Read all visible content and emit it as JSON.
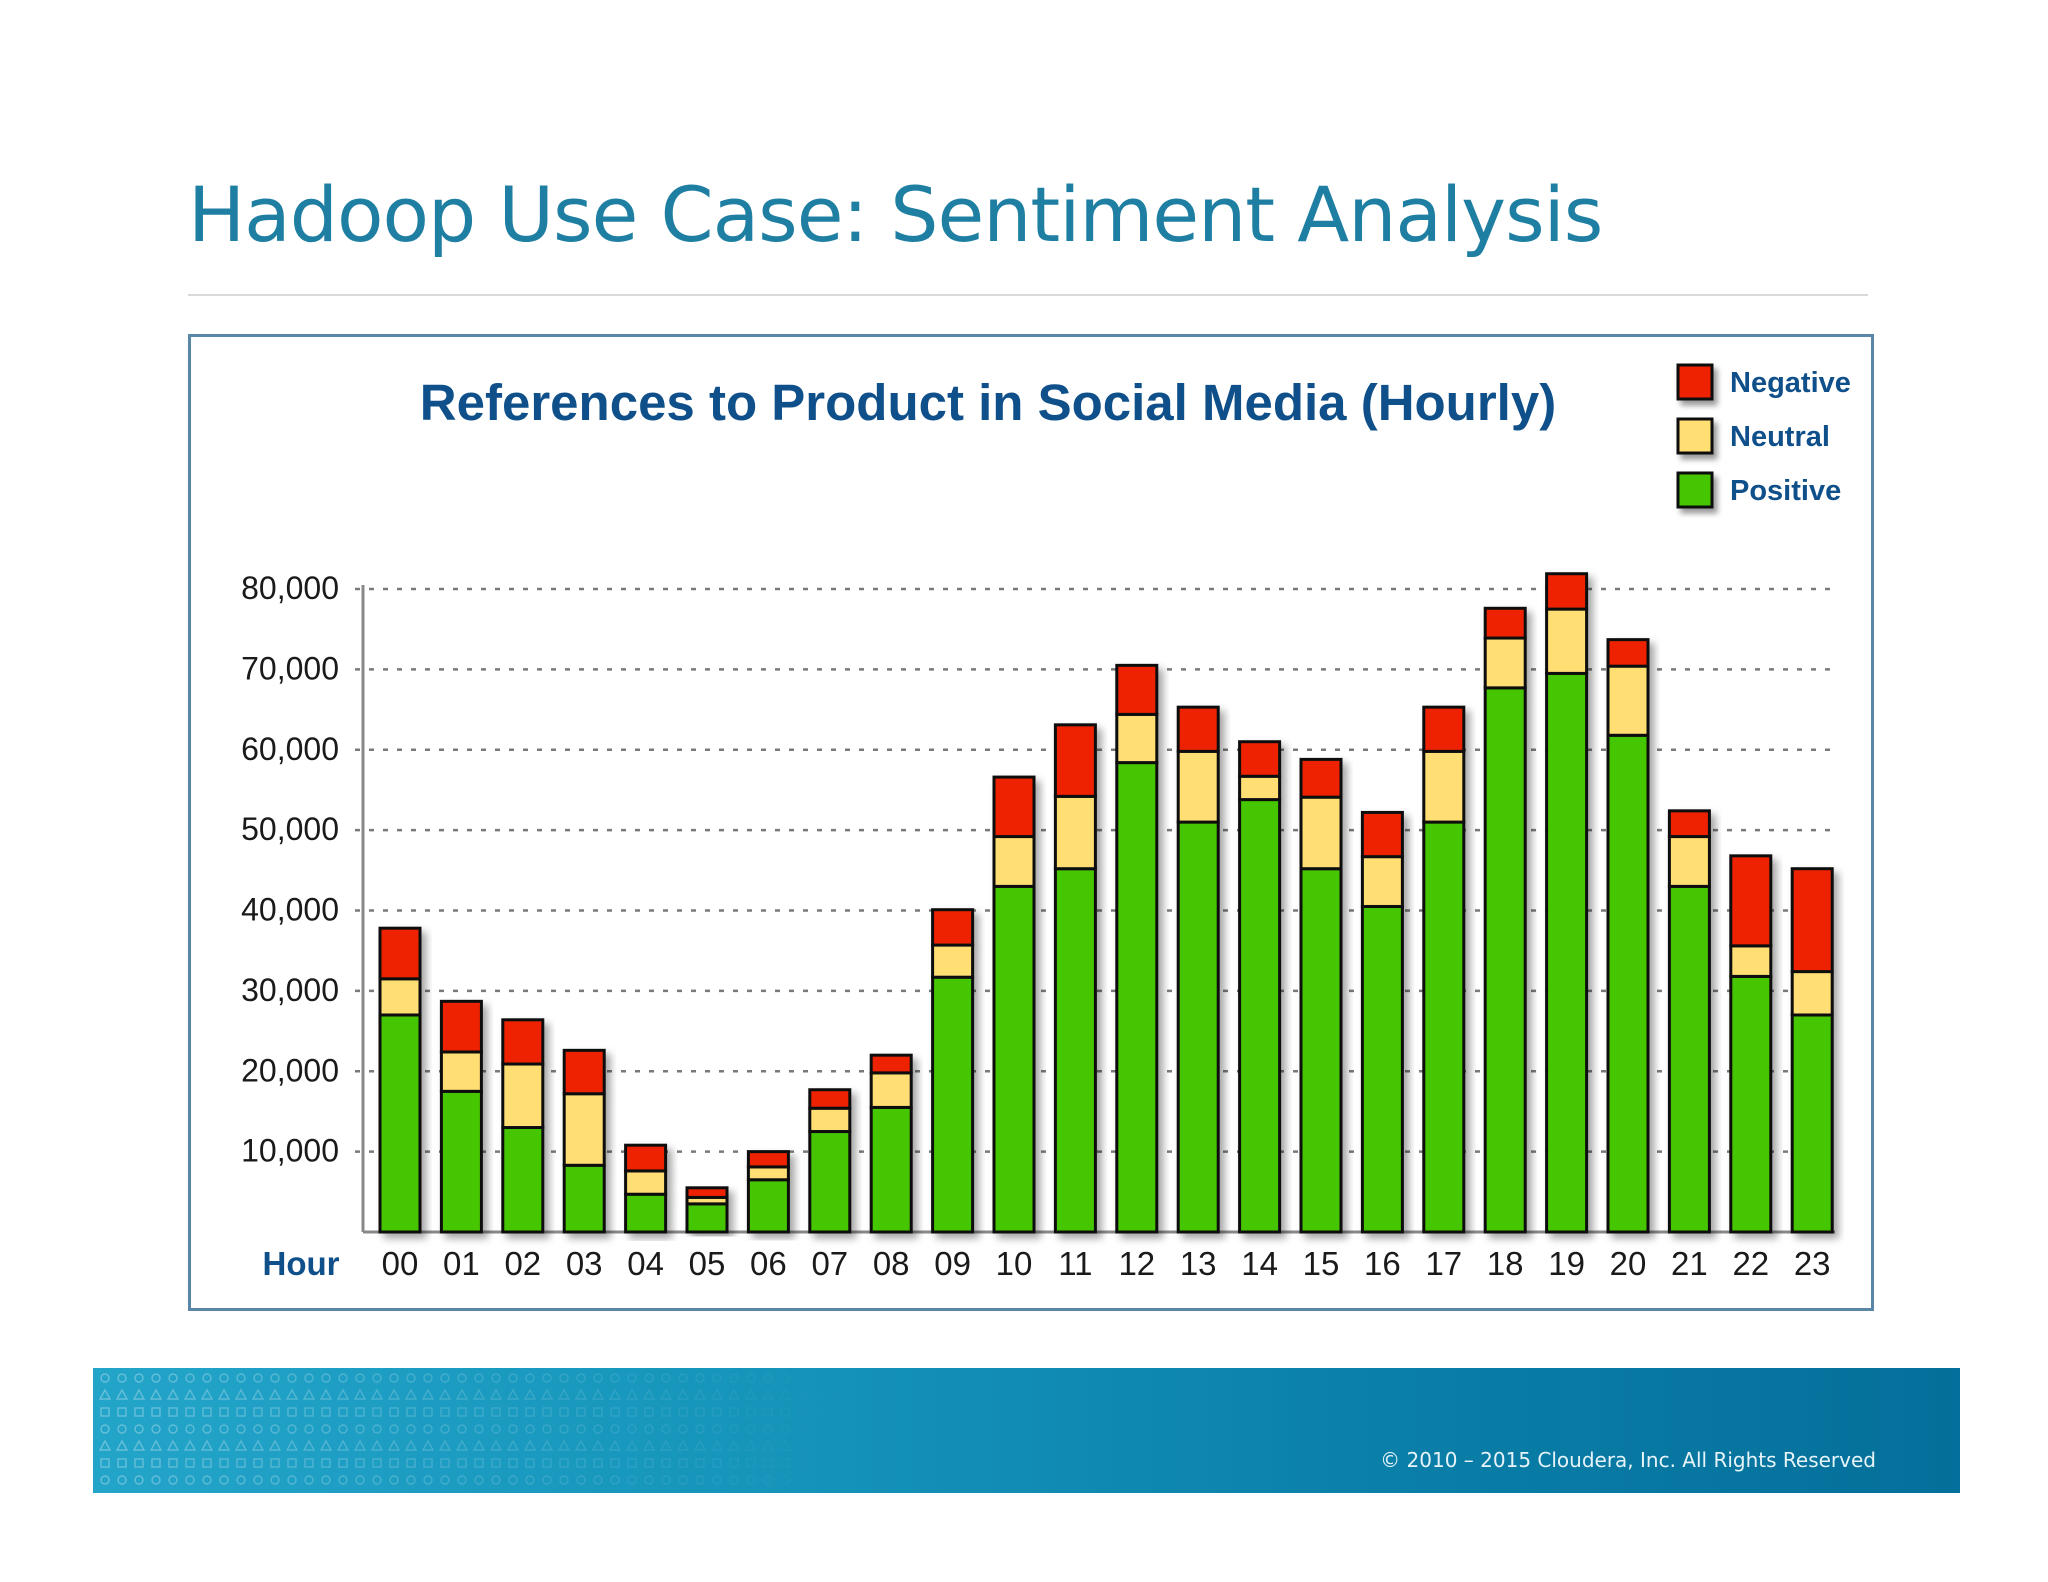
{
  "slide": {
    "title": "Hadoop Use Case: Sentiment Analysis",
    "copyright": "© 2010 – 2015 Cloudera, Inc. All Rights Reserved",
    "accent_color": "#1f7fa3"
  },
  "chart_data": {
    "type": "bar",
    "stacked": true,
    "title": "References to Product in Social Media (Hourly)",
    "xlabel": "Hour",
    "ylabel": "",
    "ylim": [
      0,
      80000
    ],
    "yticks": [
      10000,
      20000,
      30000,
      40000,
      50000,
      60000,
      70000,
      80000
    ],
    "ytick_labels": [
      "10,000",
      "20,000",
      "30,000",
      "40,000",
      "50,000",
      "60,000",
      "70,000",
      "80,000"
    ],
    "grid": "horizontal-dotted",
    "legend_position": "top-right",
    "categories": [
      "00",
      "01",
      "02",
      "03",
      "04",
      "05",
      "06",
      "07",
      "08",
      "09",
      "10",
      "11",
      "12",
      "13",
      "14",
      "15",
      "16",
      "17",
      "18",
      "19",
      "20",
      "21",
      "22",
      "23"
    ],
    "series": [
      {
        "name": "Positive",
        "color": "#45c600",
        "values": [
          27000,
          17500,
          13000,
          8300,
          4700,
          3500,
          6500,
          12500,
          15500,
          31700,
          43000,
          45200,
          58400,
          51000,
          53800,
          45200,
          40500,
          51000,
          67700,
          69500,
          61800,
          43000,
          31800,
          27000
        ]
      },
      {
        "name": "Neutral",
        "color": "#ffde73",
        "values": [
          4500,
          4900,
          7900,
          8900,
          2900,
          800,
          1600,
          2900,
          4300,
          4000,
          6200,
          9000,
          6000,
          8800,
          2900,
          8900,
          6200,
          8800,
          6200,
          8000,
          8600,
          6200,
          3800,
          5400
        ]
      },
      {
        "name": "Negative",
        "color": "#ee2200",
        "values": [
          6300,
          6300,
          5500,
          5400,
          3200,
          1200,
          1900,
          2300,
          2200,
          4400,
          7400,
          8900,
          6100,
          5500,
          4300,
          4700,
          5500,
          5500,
          3700,
          4400,
          3300,
          3200,
          11200,
          12800
        ]
      }
    ]
  }
}
